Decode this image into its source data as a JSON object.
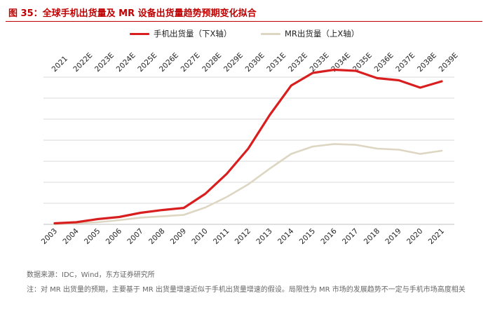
{
  "header": {
    "title": "图 35：全球手机出货量及 MR 设备出货量趋势预期变化拟合"
  },
  "colors": {
    "accent": "#c00000",
    "phone_line": "#d81e1e",
    "mr_line": "#ddd6c3",
    "grid": "#d9d9d9"
  },
  "chart_data": {
    "type": "line",
    "x_top": [
      "2021",
      "2022E",
      "2023E",
      "2024E",
      "2025E",
      "2026E",
      "2027E",
      "2028E",
      "2029E",
      "2030E",
      "2031E",
      "2032E",
      "2033E",
      "2034E",
      "2035E",
      "2036E",
      "2037E",
      "2038E",
      "2039E"
    ],
    "x_bottom": [
      "2003",
      "2004",
      "2005",
      "2006",
      "2007",
      "2008",
      "2009",
      "2010",
      "2011",
      "2012",
      "2013",
      "2014",
      "2015",
      "2016",
      "2017",
      "2018",
      "2019",
      "2020",
      "2021"
    ],
    "ylim": [
      0,
      7
    ],
    "grid": true,
    "legend_position": "top-center",
    "series": [
      {
        "name": "手机出货量（下X轴）",
        "axis": "bottom",
        "values": [
          0.05,
          0.1,
          0.25,
          0.35,
          0.55,
          0.68,
          0.78,
          1.45,
          2.4,
          3.6,
          5.2,
          6.6,
          7.2,
          7.35,
          7.3,
          6.95,
          6.85,
          6.5,
          6.8
        ]
      },
      {
        "name": "MR出货量（上X轴）",
        "axis": "top",
        "values": [
          0.0,
          0.05,
          0.1,
          0.2,
          0.32,
          0.38,
          0.45,
          0.8,
          1.3,
          1.9,
          2.65,
          3.35,
          3.7,
          3.82,
          3.78,
          3.6,
          3.55,
          3.35,
          3.5
        ]
      }
    ]
  },
  "footer": {
    "source": "数据来源：IDC，Wind，东方证券研究所",
    "note": "注：对 MR 出货量的预期，主要基于 MR 出货量增速近似于手机出货量增速的假设。局限性为 MR 市场的发展趋势不一定与手机市场高度相关"
  }
}
